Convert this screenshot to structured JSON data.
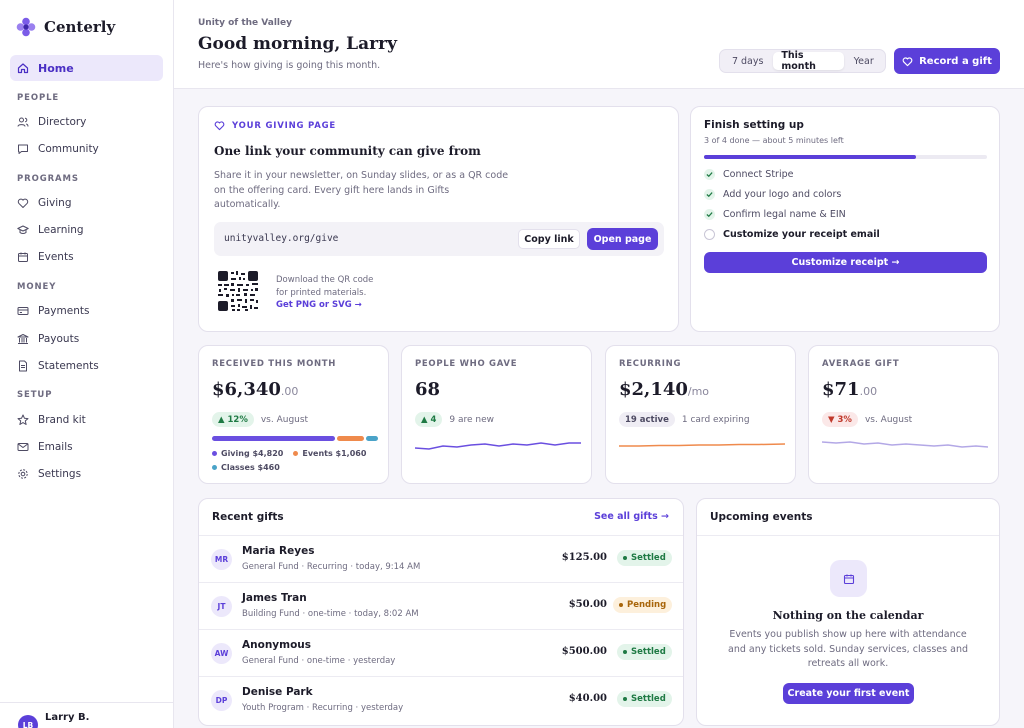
{
  "app": {
    "name": "Centerly"
  },
  "sidebar": {
    "home": "Home",
    "sections": [
      {
        "title": "PEOPLE",
        "items": [
          "Directory",
          "Community"
        ]
      },
      {
        "title": "PROGRAMS",
        "items": [
          "Giving",
          "Learning",
          "Events"
        ]
      },
      {
        "title": "MONEY",
        "items": [
          "Payments",
          "Payouts",
          "Statements"
        ]
      },
      {
        "title": "SETUP",
        "items": [
          "Brand kit",
          "Emails",
          "Settings"
        ]
      }
    ],
    "user": {
      "initials": "LB",
      "name": "Larry B."
    }
  },
  "header": {
    "org": "Unity of the Valley",
    "greeting": "Good morning, Larry",
    "subtitle": "Here's how giving is going this month.",
    "ranges": [
      "7 days",
      "This month",
      "Year"
    ],
    "active_range": "This month",
    "record_label": "Record a gift"
  },
  "giving_page": {
    "eyebrow": "YOUR GIVING PAGE",
    "title": "One link your community can give from",
    "description": "Share it in your newsletter, on Sunday slides, or as a QR code on the offering card. Every gift here lands in Gifts automatically.",
    "url": "unityvalley.org/give",
    "copy_label": "Copy link",
    "open_label": "Open page",
    "qr_text_1": "Download the QR code",
    "qr_text_2": "for printed materials.",
    "qr_link": "Get PNG or SVG →"
  },
  "setup": {
    "title": "Finish setting up",
    "subtitle": "3 of 4 done — about 5 minutes left",
    "progress": 0.75,
    "steps": [
      {
        "label": "Connect Stripe",
        "done": true
      },
      {
        "label": "Add your logo and colors",
        "done": true
      },
      {
        "label": "Confirm legal name & EIN",
        "done": true
      },
      {
        "label": "Customize your receipt email",
        "done": false
      }
    ],
    "button": "Customize receipt →"
  },
  "stats": {
    "received": {
      "label": "RECEIVED THIS MONTH",
      "value": "$6,340",
      "cents": ".00",
      "change": "▲ 12%",
      "compare": "vs. August",
      "breakdown": [
        {
          "name": "Giving",
          "amount": "$4,820",
          "value": 4820,
          "color": "#6a4fe0"
        },
        {
          "name": "Events",
          "amount": "$1,060",
          "value": 1060,
          "color": "#ef8a4c"
        },
        {
          "name": "Classes",
          "amount": "$460",
          "value": 460,
          "color": "#4aa3c8"
        }
      ]
    },
    "people": {
      "label": "PEOPLE WHO GAVE",
      "value": "68",
      "change": "▲ 4",
      "note": "9 are new",
      "color": "#6a4fe0"
    },
    "recurring": {
      "label": "RECURRING",
      "value": "$2,140",
      "unit": "/mo",
      "badge": "19 active",
      "note": "1 card expiring",
      "color": "#ef8a4c"
    },
    "average": {
      "label": "AVERAGE GIFT",
      "value": "$71",
      "cents": ".00",
      "change": "▼ 3%",
      "compare": "vs. August",
      "color": "#b3a8e6"
    }
  },
  "gifts": {
    "title": "Recent gifts",
    "see_all": "See all gifts →",
    "rows": [
      {
        "initials": "MR",
        "name": "Maria Reyes",
        "desc": "General Fund · Recurring · today, 9:14 AM",
        "amount": "$125.00",
        "status": "Settled"
      },
      {
        "initials": "JT",
        "name": "James Tran",
        "desc": "Building Fund · one-time · today, 8:02 AM",
        "amount": "$50.00",
        "status": "Pending"
      },
      {
        "initials": "AW",
        "name": "Anonymous",
        "desc": "General Fund · one-time · yesterday",
        "amount": "$500.00",
        "status": "Settled"
      },
      {
        "initials": "DP",
        "name": "Denise Park",
        "desc": "Youth Program · Recurring · yesterday",
        "amount": "$40.00",
        "status": "Settled"
      }
    ]
  },
  "events": {
    "title": "Upcoming events",
    "empty_title": "Nothing on the calendar",
    "empty_desc": "Events you publish show up here with attendance and any tickets sold. Sunday services, classes and retreats all work.",
    "button": "Create your first event"
  },
  "colors": {
    "accent": "#5b3fd9",
    "accent_light": "#ece8fb",
    "success": "#1f7a44",
    "warning": "#a8650a",
    "danger": "#c0392b"
  }
}
